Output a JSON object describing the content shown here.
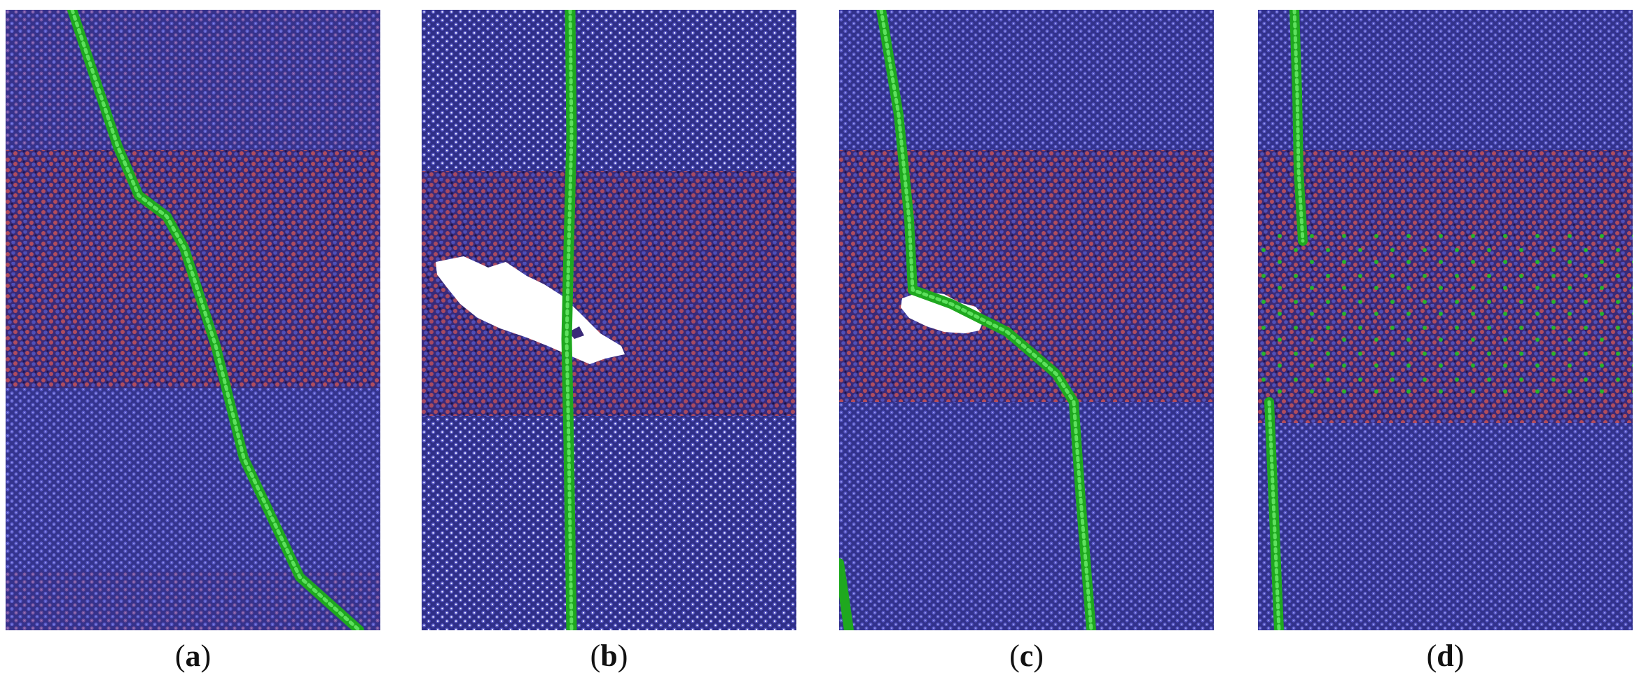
{
  "panels": [
    {
      "id": "a",
      "letter": "a"
    },
    {
      "id": "b",
      "letter": "b"
    },
    {
      "id": "c",
      "letter": "c"
    },
    {
      "id": "d",
      "letter": "d"
    }
  ],
  "colors": {
    "crystal": "#3b3b9c",
    "atom_highlight": "#6f6fd8",
    "amorphous_red": "#c0504d",
    "dislocation_green": "#22b522",
    "void_white": "#ffffff"
  }
}
